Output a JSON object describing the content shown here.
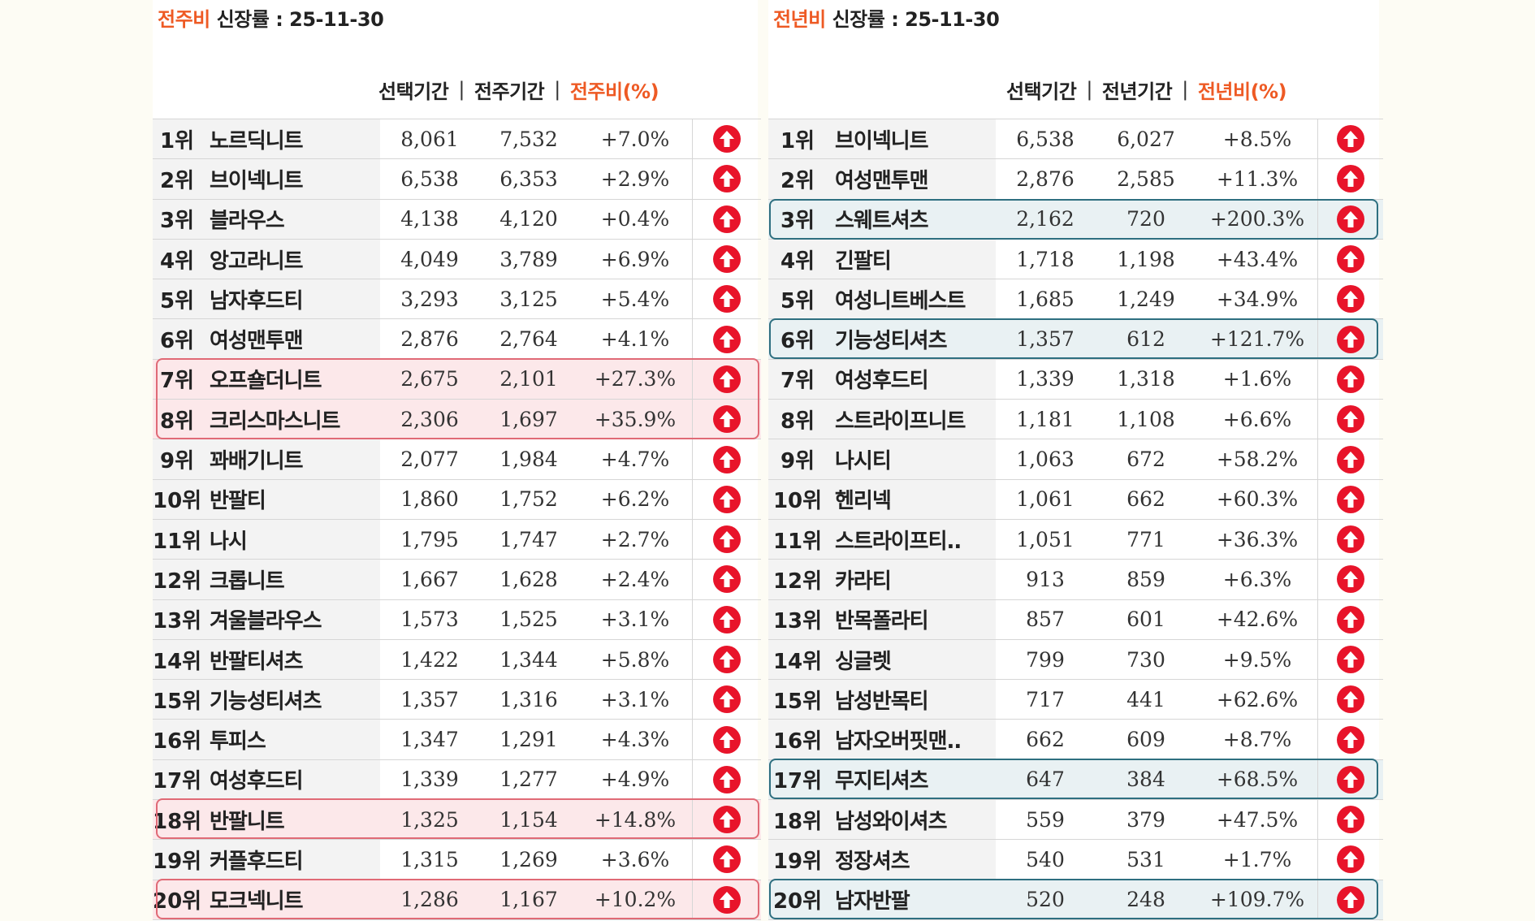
{
  "left": {
    "title_accent": "전주비",
    "title_rest": " 신장률  : 25-11-30",
    "col_selected": "선택기간",
    "col_compare": "전주기간",
    "col_ratio": "전주비(%)",
    "col_sep": "|",
    "rows": [
      {
        "rank": "1위",
        "name": "노르딕니트",
        "cur": "8,061",
        "prev": "7,532",
        "pct": "+7.0%"
      },
      {
        "rank": "2위",
        "name": "브이넥니트",
        "cur": "6,538",
        "prev": "6,353",
        "pct": "+2.9%"
      },
      {
        "rank": "3위",
        "name": "블라우스",
        "cur": "4,138",
        "prev": "4,120",
        "pct": "+0.4%"
      },
      {
        "rank": "4위",
        "name": "앙고라니트",
        "cur": "4,049",
        "prev": "3,789",
        "pct": "+6.9%"
      },
      {
        "rank": "5위",
        "name": "남자후드티",
        "cur": "3,293",
        "prev": "3,125",
        "pct": "+5.4%"
      },
      {
        "rank": "6위",
        "name": "여성맨투맨",
        "cur": "2,876",
        "prev": "2,764",
        "pct": "+4.1%"
      },
      {
        "rank": "7위",
        "name": "오프숄더니트",
        "cur": "2,675",
        "prev": "2,101",
        "pct": "+27.3%"
      },
      {
        "rank": "8위",
        "name": "크리스마스니트",
        "cur": "2,306",
        "prev": "1,697",
        "pct": "+35.9%"
      },
      {
        "rank": "9위",
        "name": "꽈배기니트",
        "cur": "2,077",
        "prev": "1,984",
        "pct": "+4.7%"
      },
      {
        "rank": "10위",
        "name": "반팔티",
        "cur": "1,860",
        "prev": "1,752",
        "pct": "+6.2%"
      },
      {
        "rank": "11위",
        "name": "나시",
        "cur": "1,795",
        "prev": "1,747",
        "pct": "+2.7%"
      },
      {
        "rank": "12위",
        "name": "크롭니트",
        "cur": "1,667",
        "prev": "1,628",
        "pct": "+2.4%"
      },
      {
        "rank": "13위",
        "name": "겨울블라우스",
        "cur": "1,573",
        "prev": "1,525",
        "pct": "+3.1%"
      },
      {
        "rank": "14위",
        "name": "반팔티셔츠",
        "cur": "1,422",
        "prev": "1,344",
        "pct": "+5.8%"
      },
      {
        "rank": "15위",
        "name": "기능성티셔츠",
        "cur": "1,357",
        "prev": "1,316",
        "pct": "+3.1%"
      },
      {
        "rank": "16위",
        "name": "투피스",
        "cur": "1,347",
        "prev": "1,291",
        "pct": "+4.3%"
      },
      {
        "rank": "17위",
        "name": "여성후드티",
        "cur": "1,339",
        "prev": "1,277",
        "pct": "+4.9%"
      },
      {
        "rank": "18위",
        "name": "반팔니트",
        "cur": "1,325",
        "prev": "1,154",
        "pct": "+14.8%"
      },
      {
        "rank": "19위",
        "name": "커플후드티",
        "cur": "1,315",
        "prev": "1,269",
        "pct": "+3.6%"
      },
      {
        "rank": "20위",
        "name": "모크넥니트",
        "cur": "1,286",
        "prev": "1,167",
        "pct": "+10.2%"
      }
    ]
  },
  "right": {
    "title_accent": "전년비",
    "title_rest": " 신장률 : 25-11-30",
    "col_selected": "선택기간",
    "col_compare": "전년기간",
    "col_ratio": "전년비(%)",
    "col_sep": "|",
    "rows": [
      {
        "rank": "1위",
        "name": "브이넥니트",
        "cur": "6,538",
        "prev": "6,027",
        "pct": "+8.5%"
      },
      {
        "rank": "2위",
        "name": "여성맨투맨",
        "cur": "2,876",
        "prev": "2,585",
        "pct": "+11.3%"
      },
      {
        "rank": "3위",
        "name": "스웨트셔츠",
        "cur": "2,162",
        "prev": "720",
        "pct": "+200.3%"
      },
      {
        "rank": "4위",
        "name": "긴팔티",
        "cur": "1,718",
        "prev": "1,198",
        "pct": "+43.4%"
      },
      {
        "rank": "5위",
        "name": "여성니트베스트",
        "cur": "1,685",
        "prev": "1,249",
        "pct": "+34.9%"
      },
      {
        "rank": "6위",
        "name": "기능성티셔츠",
        "cur": "1,357",
        "prev": "612",
        "pct": "+121.7%"
      },
      {
        "rank": "7위",
        "name": "여성후드티",
        "cur": "1,339",
        "prev": "1,318",
        "pct": "+1.6%"
      },
      {
        "rank": "8위",
        "name": "스트라이프니트",
        "cur": "1,181",
        "prev": "1,108",
        "pct": "+6.6%"
      },
      {
        "rank": "9위",
        "name": "나시티",
        "cur": "1,063",
        "prev": "672",
        "pct": "+58.2%"
      },
      {
        "rank": "10위",
        "name": "헨리넥",
        "cur": "1,061",
        "prev": "662",
        "pct": "+60.3%"
      },
      {
        "rank": "11위",
        "name": "스트라이프티..",
        "cur": "1,051",
        "prev": "771",
        "pct": "+36.3%"
      },
      {
        "rank": "12위",
        "name": "카라티",
        "cur": "913",
        "prev": "859",
        "pct": "+6.3%"
      },
      {
        "rank": "13위",
        "name": "반목폴라티",
        "cur": "857",
        "prev": "601",
        "pct": "+42.6%"
      },
      {
        "rank": "14위",
        "name": "싱글렛",
        "cur": "799",
        "prev": "730",
        "pct": "+9.5%"
      },
      {
        "rank": "15위",
        "name": "남성반목티",
        "cur": "717",
        "prev": "441",
        "pct": "+62.6%"
      },
      {
        "rank": "16위",
        "name": "남자오버핏맨..",
        "cur": "662",
        "prev": "609",
        "pct": "+8.7%"
      },
      {
        "rank": "17위",
        "name": "무지티셔츠",
        "cur": "647",
        "prev": "384",
        "pct": "+68.5%"
      },
      {
        "rank": "18위",
        "name": "남성와이셔츠",
        "cur": "559",
        "prev": "379",
        "pct": "+47.5%"
      },
      {
        "rank": "19위",
        "name": "정장셔츠",
        "cur": "540",
        "prev": "531",
        "pct": "+1.7%"
      },
      {
        "rank": "20위",
        "name": "남자반팔",
        "cur": "520",
        "prev": "248",
        "pct": "+109.7%"
      }
    ]
  },
  "colors": {
    "accent": "#ee5a24",
    "arrow": "#e8142a",
    "highlight_red": "#e06a76",
    "highlight_blue": "#2e6f80"
  },
  "icons": {
    "trend": "arrow-up-circle-icon"
  }
}
